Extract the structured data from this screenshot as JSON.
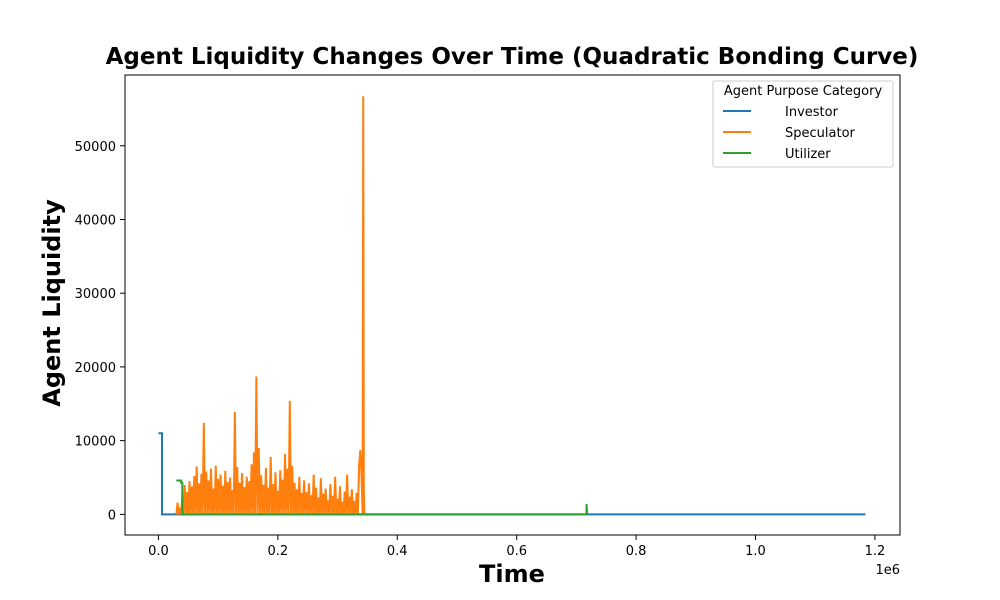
{
  "chart_data": {
    "type": "line",
    "title": "Agent Liquidity Changes Over Time (Quadratic Bonding Curve)",
    "xlabel": "Time",
    "ylabel": "Agent Liquidity",
    "x_offset_label": "1e6",
    "xlim": [
      -0.056,
      1.242
    ],
    "ylim": [
      -2800,
      59600
    ],
    "x_ticks": [
      0.0,
      0.2,
      0.4,
      0.6,
      0.8,
      1.0,
      1.2
    ],
    "x_tick_labels": [
      "0.0",
      "0.2",
      "0.4",
      "0.6",
      "0.8",
      "1.0",
      "1.2"
    ],
    "y_ticks": [
      0,
      10000,
      20000,
      30000,
      40000,
      50000
    ],
    "y_tick_labels": [
      "0",
      "10000",
      "20000",
      "30000",
      "40000",
      "50000"
    ],
    "grid": false,
    "legend": {
      "title": "Agent Purpose Category",
      "placement": "top-right"
    },
    "series": [
      {
        "name": "Investor",
        "color": "#1f77b4",
        "points": [
          [
            0.0,
            11000
          ],
          [
            0.006,
            11000
          ],
          [
            0.006,
            0
          ],
          [
            0.3,
            0
          ],
          [
            0.72,
            0
          ],
          [
            1.184,
            0
          ]
        ]
      },
      {
        "name": "Speculator",
        "color": "#ff7f0e",
        "points": [
          [
            0.03,
            0
          ],
          [
            0.032,
            1600
          ],
          [
            0.034,
            0
          ],
          [
            0.036,
            900
          ],
          [
            0.038,
            0
          ],
          [
            0.04,
            2500
          ],
          [
            0.042,
            0
          ],
          [
            0.044,
            4000
          ],
          [
            0.046,
            0
          ],
          [
            0.048,
            3000
          ],
          [
            0.05,
            0
          ],
          [
            0.052,
            4500
          ],
          [
            0.054,
            0
          ],
          [
            0.056,
            3800
          ],
          [
            0.058,
            0
          ],
          [
            0.06,
            5200
          ],
          [
            0.062,
            0
          ],
          [
            0.064,
            6500
          ],
          [
            0.066,
            0
          ],
          [
            0.068,
            4200
          ],
          [
            0.07,
            0
          ],
          [
            0.072,
            5500
          ],
          [
            0.074,
            0
          ],
          [
            0.076,
            12400
          ],
          [
            0.078,
            0
          ],
          [
            0.08,
            5800
          ],
          [
            0.082,
            0
          ],
          [
            0.084,
            4600
          ],
          [
            0.086,
            0
          ],
          [
            0.088,
            6200
          ],
          [
            0.09,
            0
          ],
          [
            0.092,
            3500
          ],
          [
            0.094,
            0
          ],
          [
            0.096,
            6600
          ],
          [
            0.098,
            0
          ],
          [
            0.1,
            4800
          ],
          [
            0.102,
            0
          ],
          [
            0.104,
            5400
          ],
          [
            0.106,
            0
          ],
          [
            0.108,
            3900
          ],
          [
            0.11,
            0
          ],
          [
            0.112,
            5900
          ],
          [
            0.114,
            0
          ],
          [
            0.116,
            4400
          ],
          [
            0.118,
            0
          ],
          [
            0.12,
            5000
          ],
          [
            0.122,
            0
          ],
          [
            0.124,
            3300
          ],
          [
            0.126,
            0
          ],
          [
            0.128,
            13900
          ],
          [
            0.13,
            0
          ],
          [
            0.132,
            6400
          ],
          [
            0.134,
            0
          ],
          [
            0.136,
            4300
          ],
          [
            0.138,
            0
          ],
          [
            0.14,
            5600
          ],
          [
            0.142,
            0
          ],
          [
            0.144,
            3700
          ],
          [
            0.146,
            0
          ],
          [
            0.148,
            5100
          ],
          [
            0.15,
            0
          ],
          [
            0.152,
            4500
          ],
          [
            0.154,
            0
          ],
          [
            0.156,
            6800
          ],
          [
            0.158,
            0
          ],
          [
            0.16,
            8400
          ],
          [
            0.162,
            0
          ],
          [
            0.164,
            18700
          ],
          [
            0.166,
            0
          ],
          [
            0.168,
            9000
          ],
          [
            0.17,
            0
          ],
          [
            0.172,
            5300
          ],
          [
            0.174,
            0
          ],
          [
            0.176,
            4000
          ],
          [
            0.178,
            0
          ],
          [
            0.18,
            6300
          ],
          [
            0.182,
            0
          ],
          [
            0.184,
            3600
          ],
          [
            0.186,
            0
          ],
          [
            0.188,
            7800
          ],
          [
            0.19,
            0
          ],
          [
            0.192,
            4100
          ],
          [
            0.194,
            0
          ],
          [
            0.196,
            5700
          ],
          [
            0.198,
            0
          ],
          [
            0.2,
            3200
          ],
          [
            0.202,
            0
          ],
          [
            0.204,
            6000
          ],
          [
            0.206,
            0
          ],
          [
            0.208,
            4700
          ],
          [
            0.21,
            0
          ],
          [
            0.212,
            8200
          ],
          [
            0.214,
            0
          ],
          [
            0.216,
            6200
          ],
          [
            0.218,
            0
          ],
          [
            0.22,
            15400
          ],
          [
            0.222,
            0
          ],
          [
            0.224,
            6600
          ],
          [
            0.226,
            0
          ],
          [
            0.228,
            4300
          ],
          [
            0.23,
            0
          ],
          [
            0.232,
            3400
          ],
          [
            0.234,
            0
          ],
          [
            0.236,
            5100
          ],
          [
            0.238,
            0
          ],
          [
            0.24,
            2900
          ],
          [
            0.242,
            0
          ],
          [
            0.244,
            4600
          ],
          [
            0.246,
            0
          ],
          [
            0.248,
            3000
          ],
          [
            0.25,
            0
          ],
          [
            0.252,
            4200
          ],
          [
            0.254,
            0
          ],
          [
            0.256,
            2600
          ],
          [
            0.258,
            0
          ],
          [
            0.26,
            5400
          ],
          [
            0.262,
            0
          ],
          [
            0.264,
            3600
          ],
          [
            0.266,
            0
          ],
          [
            0.268,
            2300
          ],
          [
            0.27,
            0
          ],
          [
            0.272,
            4900
          ],
          [
            0.274,
            0
          ],
          [
            0.276,
            2800
          ],
          [
            0.278,
            0
          ],
          [
            0.28,
            3500
          ],
          [
            0.282,
            0
          ],
          [
            0.284,
            1900
          ],
          [
            0.286,
            0
          ],
          [
            0.288,
            4100
          ],
          [
            0.29,
            0
          ],
          [
            0.292,
            2500
          ],
          [
            0.294,
            0
          ],
          [
            0.296,
            5100
          ],
          [
            0.298,
            0
          ],
          [
            0.3,
            2100
          ],
          [
            0.302,
            0
          ],
          [
            0.304,
            3800
          ],
          [
            0.306,
            0
          ],
          [
            0.308,
            1700
          ],
          [
            0.31,
            0
          ],
          [
            0.312,
            3100
          ],
          [
            0.314,
            0
          ],
          [
            0.316,
            5400
          ],
          [
            0.318,
            0
          ],
          [
            0.32,
            2400
          ],
          [
            0.322,
            0
          ],
          [
            0.324,
            3400
          ],
          [
            0.326,
            0
          ],
          [
            0.328,
            1800
          ],
          [
            0.33,
            0
          ],
          [
            0.332,
            2900
          ],
          [
            0.334,
            0
          ],
          [
            0.336,
            6500
          ],
          [
            0.338,
            8700
          ],
          [
            0.34,
            5500
          ],
          [
            0.342,
            0
          ],
          [
            0.343,
            56700
          ],
          [
            0.344,
            3200
          ],
          [
            0.345,
            0
          ]
        ]
      },
      {
        "name": "Utilizer",
        "color": "#2ca02c",
        "points": [
          [
            0.03,
            4600
          ],
          [
            0.038,
            4600
          ],
          [
            0.038,
            4300
          ],
          [
            0.04,
            4300
          ],
          [
            0.04,
            0
          ],
          [
            0.45,
            0
          ],
          [
            0.717,
            0
          ],
          [
            0.717,
            1400
          ],
          [
            0.718,
            0
          ]
        ]
      }
    ]
  }
}
